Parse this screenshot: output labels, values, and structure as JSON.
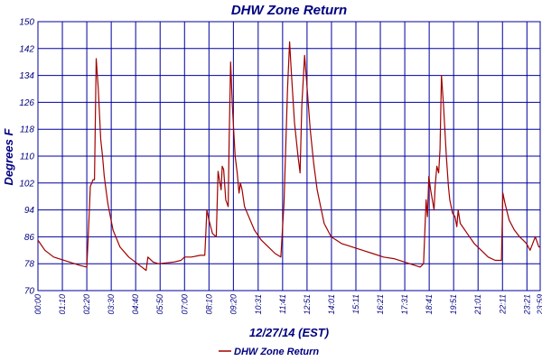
{
  "chart_data": {
    "type": "line",
    "title": "DHW Zone Return",
    "xlabel": "12/27/14 (EST)",
    "ylabel": "Degrees F",
    "ylim": [
      70,
      150
    ],
    "yticks": [
      70,
      78,
      86,
      94,
      102,
      110,
      118,
      126,
      134,
      142,
      150
    ],
    "xlim": [
      "00:00",
      "23:59"
    ],
    "xtick_labels": [
      "00:00",
      "01:10",
      "02:20",
      "03:30",
      "04:40",
      "05:50",
      "07:00",
      "08:10",
      "09:20",
      "10:31",
      "11:41",
      "12:51",
      "14:01",
      "15:11",
      "16:21",
      "17:31",
      "18:41",
      "19:51",
      "21:01",
      "22:11",
      "23:21",
      "23:59"
    ],
    "grid": true,
    "legend_position": "bottom-center",
    "colors": {
      "series": "#a00000",
      "grid": "#0000a0",
      "text": "#000080"
    },
    "series": [
      {
        "name": "DHW Zone Return",
        "points": [
          [
            "00:00",
            85
          ],
          [
            "00:20",
            82
          ],
          [
            "00:45",
            80
          ],
          [
            "01:30",
            78.5
          ],
          [
            "02:00",
            77.5
          ],
          [
            "02:20",
            77
          ],
          [
            "02:25",
            88
          ],
          [
            "02:30",
            101
          ],
          [
            "02:38",
            103
          ],
          [
            "02:42",
            103
          ],
          [
            "02:47",
            139
          ],
          [
            "02:53",
            130
          ],
          [
            "03:00",
            115
          ],
          [
            "03:05",
            110
          ],
          [
            "03:10",
            104
          ],
          [
            "03:20",
            96
          ],
          [
            "03:35",
            88
          ],
          [
            "03:55",
            83
          ],
          [
            "04:20",
            80
          ],
          [
            "04:45",
            78
          ],
          [
            "05:10",
            76
          ],
          [
            "05:15",
            80
          ],
          [
            "05:30",
            78.5
          ],
          [
            "05:45",
            78
          ],
          [
            "06:30",
            78.5
          ],
          [
            "06:50",
            79
          ],
          [
            "07:00",
            80
          ],
          [
            "07:20",
            80
          ],
          [
            "07:45",
            80.5
          ],
          [
            "07:58",
            80.5
          ],
          [
            "08:00",
            85
          ],
          [
            "08:04",
            94
          ],
          [
            "08:10",
            91
          ],
          [
            "08:20",
            87
          ],
          [
            "08:31",
            86
          ],
          [
            "08:36",
            105.5
          ],
          [
            "08:40",
            103
          ],
          [
            "08:45",
            100
          ],
          [
            "08:48",
            107
          ],
          [
            "08:52",
            106
          ],
          [
            "08:58",
            97
          ],
          [
            "09:05",
            95
          ],
          [
            "09:08",
            115
          ],
          [
            "09:12",
            138
          ],
          [
            "09:17",
            125
          ],
          [
            "09:25",
            110
          ],
          [
            "09:31",
            105
          ],
          [
            "09:36",
            99
          ],
          [
            "09:40",
            102
          ],
          [
            "09:45",
            100
          ],
          [
            "09:52",
            95
          ],
          [
            "10:00",
            93
          ],
          [
            "10:20",
            88
          ],
          [
            "10:40",
            85
          ],
          [
            "11:00",
            83
          ],
          [
            "11:20",
            81
          ],
          [
            "11:36",
            80
          ],
          [
            "11:45",
            96
          ],
          [
            "11:55",
            130
          ],
          [
            "12:01",
            144
          ],
          [
            "12:06",
            135
          ],
          [
            "12:15",
            120
          ],
          [
            "12:25",
            110
          ],
          [
            "12:31",
            105
          ],
          [
            "12:36",
            125
          ],
          [
            "12:44",
            140
          ],
          [
            "12:50",
            132
          ],
          [
            "13:00",
            118
          ],
          [
            "13:10",
            108
          ],
          [
            "13:20",
            100
          ],
          [
            "13:40",
            90
          ],
          [
            "14:00",
            86
          ],
          [
            "14:30",
            84
          ],
          [
            "15:00",
            83
          ],
          [
            "15:30",
            82
          ],
          [
            "16:00",
            81
          ],
          [
            "16:30",
            80
          ],
          [
            "17:00",
            79.5
          ],
          [
            "17:30",
            78.5
          ],
          [
            "18:00",
            77.5
          ],
          [
            "18:15",
            77
          ],
          [
            "18:25",
            78
          ],
          [
            "18:32",
            97
          ],
          [
            "18:36",
            92
          ],
          [
            "18:40",
            104
          ],
          [
            "18:45",
            100
          ],
          [
            "18:50",
            97
          ],
          [
            "18:55",
            94
          ],
          [
            "18:58",
            101
          ],
          [
            "19:03",
            107
          ],
          [
            "19:08",
            105
          ],
          [
            "19:12",
            112
          ],
          [
            "19:16",
            134
          ],
          [
            "19:22",
            125
          ],
          [
            "19:30",
            110
          ],
          [
            "19:36",
            101
          ],
          [
            "19:40",
            97
          ],
          [
            "19:48",
            93
          ],
          [
            "19:55",
            92
          ],
          [
            "20:00",
            89
          ],
          [
            "20:04",
            94
          ],
          [
            "20:10",
            90
          ],
          [
            "20:30",
            87
          ],
          [
            "20:50",
            84
          ],
          [
            "21:10",
            82
          ],
          [
            "21:30",
            80
          ],
          [
            "21:50",
            79
          ],
          [
            "22:08",
            79
          ],
          [
            "22:12",
            99
          ],
          [
            "22:18",
            96
          ],
          [
            "22:30",
            91
          ],
          [
            "22:45",
            88
          ],
          [
            "23:00",
            86
          ],
          [
            "23:10",
            85
          ],
          [
            "23:20",
            84
          ],
          [
            "23:30",
            82
          ],
          [
            "23:45",
            86
          ],
          [
            "23:55",
            83
          ],
          [
            "23:59",
            83
          ]
        ]
      }
    ]
  }
}
